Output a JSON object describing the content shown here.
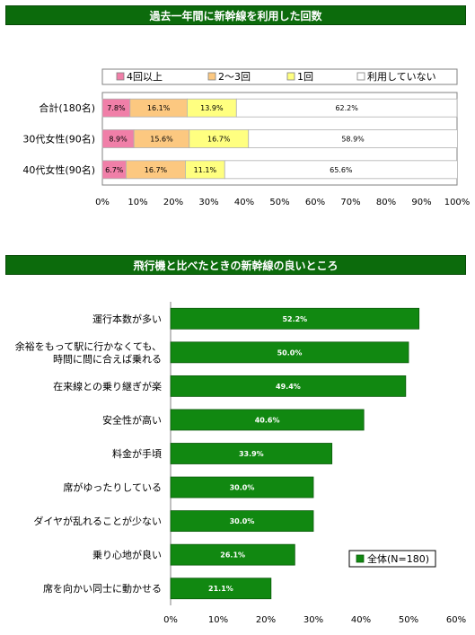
{
  "chart_data": [
    {
      "type": "bar",
      "orientation": "horizontal",
      "stacked": true,
      "title": "過去一年間に新幹線を利用した回数",
      "categories": [
        "合計(180名)",
        "30代女性(90名)",
        "40代女性(90名)"
      ],
      "series": [
        {
          "name": "4回以上",
          "color": "#f07fa8",
          "values": [
            7.8,
            8.9,
            6.7
          ],
          "labels": [
            "7.8%",
            "8.9%",
            "6.7%"
          ]
        },
        {
          "name": "2～3回",
          "color": "#fcc880",
          "values": [
            16.1,
            15.6,
            16.7
          ],
          "labels": [
            "16.1%",
            "15.6%",
            "16.7%"
          ]
        },
        {
          "name": "1回",
          "color": "#ffff80",
          "values": [
            13.9,
            16.7,
            11.1
          ],
          "labels": [
            "13.9%",
            "16.7%",
            "11.1%"
          ]
        },
        {
          "name": "利用していない",
          "color": "#ffffff",
          "values": [
            62.2,
            58.9,
            65.6
          ],
          "labels": [
            "62.2%",
            "58.9%",
            "65.6%"
          ]
        }
      ],
      "xlim": [
        0,
        100
      ],
      "xticks": [
        "0%",
        "10%",
        "20%",
        "30%",
        "40%",
        "50%",
        "60%",
        "70%",
        "80%",
        "90%",
        "100%"
      ],
      "legend": "top"
    },
    {
      "type": "bar",
      "orientation": "horizontal",
      "title": "飛行機と比べたときの新幹線の良いところ",
      "categories": [
        [
          "運行本数が多い"
        ],
        [
          "余裕をもって駅に行かなくても、",
          "時間に間に合えば乗れる"
        ],
        [
          "在来線との乗り継ぎが楽"
        ],
        [
          "安全性が高い"
        ],
        [
          "料金が手頃"
        ],
        [
          "席がゆったりしている"
        ],
        [
          "ダイヤが乱れることが少ない"
        ],
        [
          "乗り心地が良い"
        ],
        [
          "席を向かい同士に動かせる"
        ]
      ],
      "series": [
        {
          "name": "全体(N=180)",
          "color": "#118811",
          "values": [
            52.2,
            50.0,
            49.4,
            40.6,
            33.9,
            30.0,
            30.0,
            26.1,
            21.1
          ],
          "labels": [
            "52.2%",
            "50.0%",
            "49.4%",
            "40.6%",
            "33.9%",
            "30.0%",
            "30.0%",
            "26.1%",
            "21.1%"
          ]
        }
      ],
      "xlim": [
        0,
        60
      ],
      "xticks": [
        "0%",
        "10%",
        "20%",
        "30%",
        "40%",
        "50%",
        "60%"
      ],
      "legend": "bottom-right"
    }
  ]
}
